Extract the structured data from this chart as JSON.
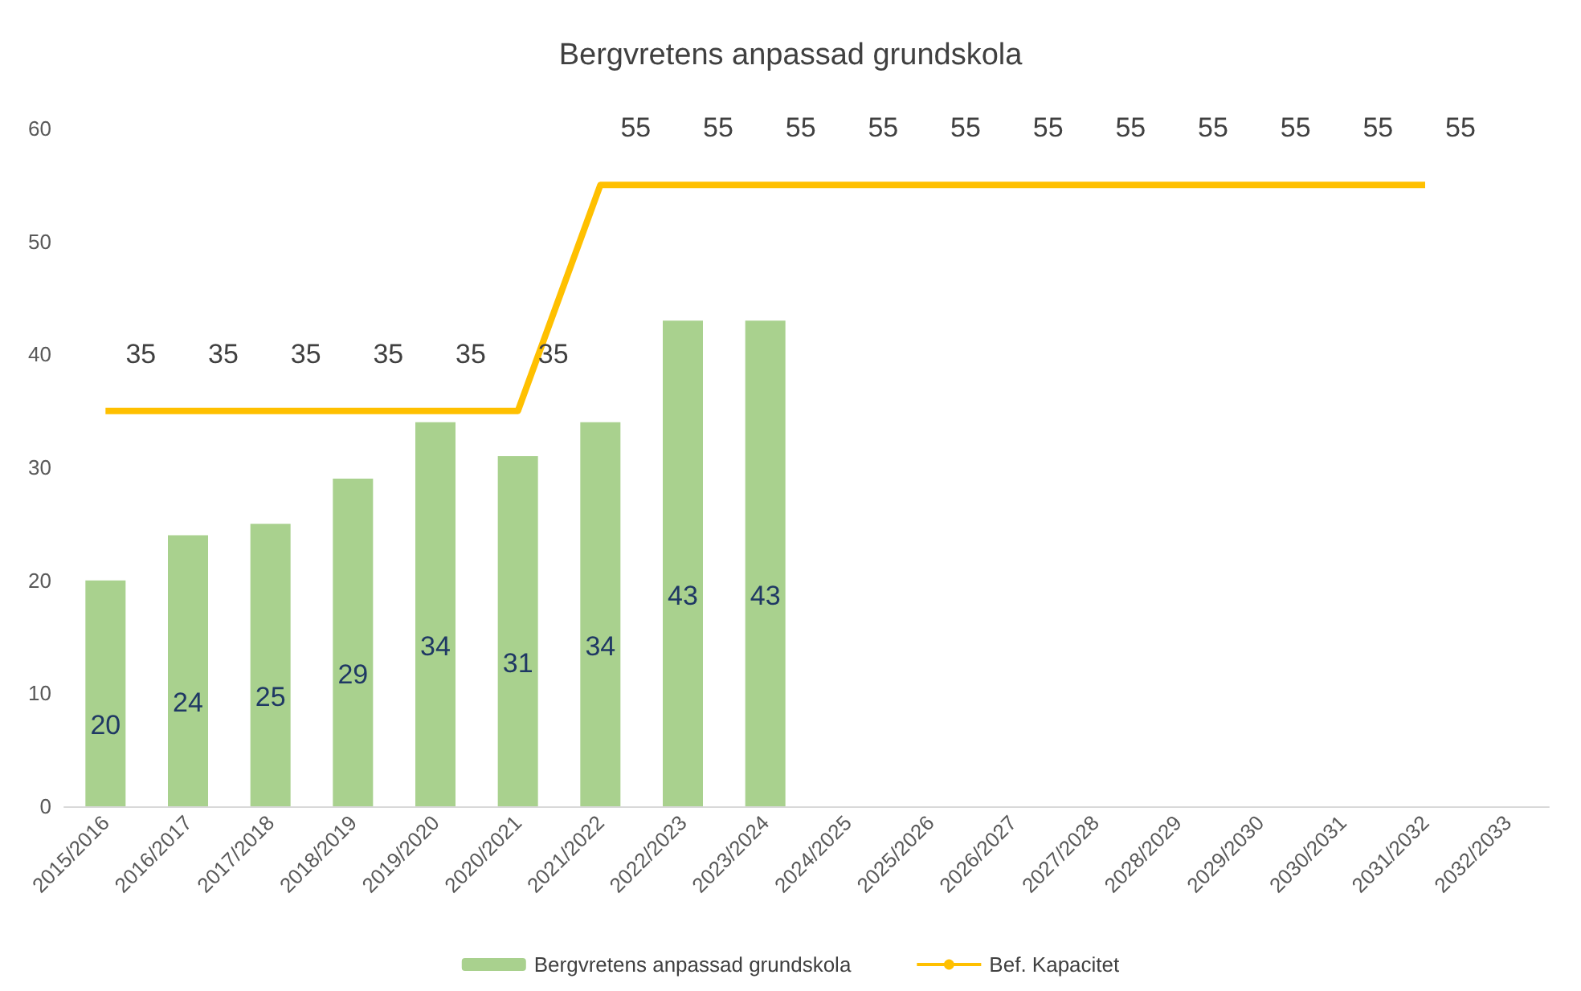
{
  "chart_data": {
    "type": "bar",
    "title": "Bergvretens anpassad grundskola",
    "categories": [
      "2015/2016",
      "2016/2017",
      "2017/2018",
      "2018/2019",
      "2019/2020",
      "2020/2021",
      "2021/2022",
      "2022/2023",
      "2023/2024",
      "2024/2025",
      "2025/2026",
      "2026/2027",
      "2027/2028",
      "2028/2029",
      "2029/2030",
      "2030/2031",
      "2031/2032",
      "2032/2033"
    ],
    "series": [
      {
        "name": "Bergvretens anpassad grundskola",
        "color": "#a9d18e",
        "values": [
          20,
          24,
          25,
          29,
          34,
          31,
          34,
          43,
          43,
          null,
          null,
          null,
          null,
          null,
          null,
          null,
          null,
          null
        ]
      },
      {
        "name": "Bef. Kapacitet",
        "type": "line",
        "color": "#ffc000",
        "values": [
          35,
          35,
          35,
          35,
          35,
          35,
          55,
          55,
          55,
          55,
          55,
          55,
          55,
          55,
          55,
          55,
          55,
          null
        ]
      }
    ],
    "ylim": [
      0,
      60
    ],
    "yticks": [
      0,
      10,
      20,
      30,
      40,
      50,
      60
    ],
    "grid": false,
    "legend": "bottom",
    "data_labels": true,
    "marker": "none"
  }
}
